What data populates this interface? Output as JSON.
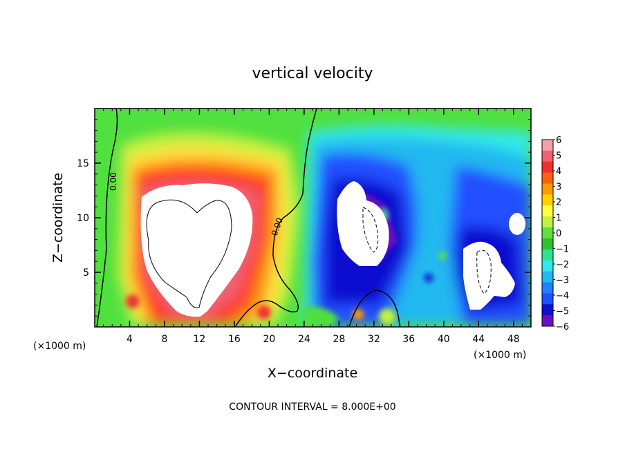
{
  "chart_data": {
    "type": "heatmap",
    "title": "vertical velocity",
    "xlabel": "X−coordinate",
    "ylabel": "Z−coordinate",
    "x_unit_left": "(×1000 m)",
    "x_unit_right": "(×1000 m)",
    "footer": "CONTOUR INTERVAL = 8.000E+00",
    "xlim": [
      0,
      50
    ],
    "ylim": [
      0,
      20
    ],
    "x_ticks": [
      4,
      8,
      12,
      16,
      20,
      24,
      28,
      32,
      36,
      40,
      44,
      48
    ],
    "y_ticks": [
      5,
      10,
      15
    ],
    "colorbar": {
      "levels": [
        -6,
        -5,
        -4,
        -3,
        -2,
        -1,
        0,
        1,
        2,
        3,
        4,
        5,
        6
      ],
      "labels": [
        "6",
        "5",
        "4",
        "3",
        "2",
        "1",
        "0",
        "−1",
        "−2",
        "−3",
        "−4",
        "−5",
        "−6"
      ],
      "colors": [
        "#f4a0a8",
        "#f06070",
        "#f03030",
        "#ff6010",
        "#ff9a00",
        "#ffd000",
        "#ffff40",
        "#c0f040",
        "#60e040",
        "#30c030",
        "#30e090",
        "#30e8e8",
        "#20b8f0",
        "#2080ff",
        "#2050ff",
        "#1010d0",
        "#6a10c0"
      ]
    },
    "contour_labels": [
      "0.00",
      "0.00"
    ]
  }
}
